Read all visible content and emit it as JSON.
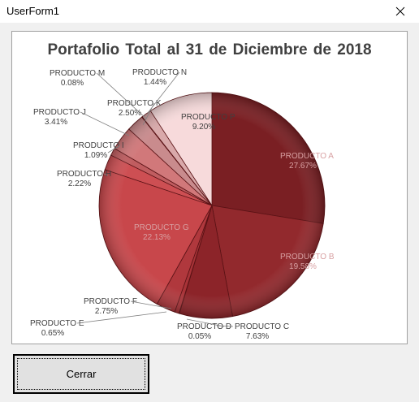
{
  "window": {
    "title": "UserForm1"
  },
  "icons": {
    "close": "close-icon"
  },
  "buttons": {
    "close_label": "Cerrar"
  },
  "chart_data": {
    "type": "pie",
    "title": "Portafolio Total al 31 de Diciembre de 2018",
    "slices": [
      {
        "name": "PRODUCTO A",
        "value": 27.67,
        "label": "27.67%",
        "color": "#7a1f23"
      },
      {
        "name": "PRODUCTO B",
        "value": 19.58,
        "label": "19.58%",
        "color": "#92292d"
      },
      {
        "name": "PRODUCTO C",
        "value": 7.63,
        "label": "7.63%",
        "color": "#8c2429"
      },
      {
        "name": "PRODUCTO D",
        "value": 0.05,
        "label": "0.05%",
        "color": "#a33035"
      },
      {
        "name": "PRODUCTO E",
        "value": 0.65,
        "label": "0.65%",
        "color": "#a83338"
      },
      {
        "name": "PRODUCTO F",
        "value": 2.75,
        "label": "2.75%",
        "color": "#b0383d"
      },
      {
        "name": "PRODUCTO G",
        "value": 22.13,
        "label": "22.13%",
        "color": "#c8474b"
      },
      {
        "name": "PRODUCTO H",
        "value": 2.22,
        "label": "2.22%",
        "color": "#cd4f53"
      },
      {
        "name": "PRODUCTO I",
        "value": 1.09,
        "label": "1.09%",
        "color": "#c05d60"
      },
      {
        "name": "PRODUCTO J",
        "value": 3.41,
        "label": "3.41%",
        "color": "#d1787a"
      },
      {
        "name": "PRODUCTO K",
        "value": 2.5,
        "label": "2.50%",
        "color": "#c98b8d"
      },
      {
        "name": "PRODUCTO M",
        "value": 0.08,
        "label": "0.08%",
        "color": "#d99a9c"
      },
      {
        "name": "PRODUCTO N",
        "value": 1.44,
        "label": "1.44%",
        "color": "#d9a9aa"
      },
      {
        "name": "PRODUCTO P",
        "value": 9.2,
        "label": "9.20%",
        "color": "#f7dadb"
      }
    ]
  }
}
